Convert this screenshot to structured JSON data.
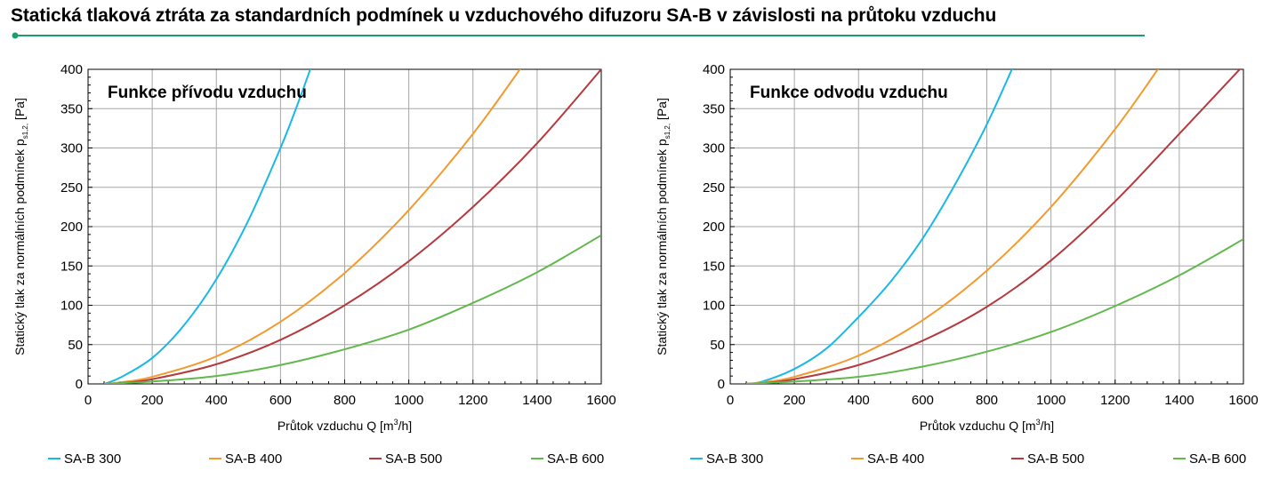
{
  "page": {
    "title": "Statická tlaková ztráta za standardních podmínek u vzduchového difuzoru SA-B v závislosti na průtoku vzduchu",
    "accent_color": "#1a9e6b"
  },
  "chart_data": [
    {
      "type": "line",
      "panel_label": "Funkce přívodu vzduchu",
      "xlabel_text": "Průtok vzduchu Q [m",
      "xlabel_sup": "3",
      "xlabel_end": "/h]",
      "ylabel_text": "Statický tlak za normálních podmínek p",
      "ylabel_sub": "s1,2,",
      "ylabel_end": " [Pa]",
      "xlim": [
        0,
        1600
      ],
      "ylim": [
        0,
        400
      ],
      "x_ticks": [
        0,
        200,
        400,
        600,
        800,
        1000,
        1200,
        1400,
        1600
      ],
      "y_ticks": [
        0,
        50,
        100,
        150,
        200,
        250,
        300,
        350,
        400
      ],
      "grid": true,
      "legend_position": "bottom",
      "series": [
        {
          "name": "SA-B 300",
          "color": "#19b8e6",
          "x": [
            50,
            100,
            200,
            300,
            400,
            500,
            600,
            650,
            700
          ],
          "y": [
            0,
            8,
            33,
            75,
            133,
            208,
            300,
            352,
            408
          ]
        },
        {
          "name": "SA-B 400",
          "color": "#f29a2e",
          "x": [
            50,
            100,
            200,
            400,
            600,
            800,
            1000,
            1200,
            1350
          ],
          "y": [
            0,
            2,
            9,
            35,
            79,
            141,
            221,
            318,
            402
          ]
        },
        {
          "name": "SA-B 500",
          "color": "#b5393d",
          "x": [
            50,
            100,
            200,
            400,
            600,
            800,
            1000,
            1200,
            1400,
            1600
          ],
          "y": [
            0,
            1,
            6,
            25,
            56,
            100,
            156,
            225,
            306,
            400
          ]
        },
        {
          "name": "SA-B 600",
          "color": "#62b84d",
          "x": [
            50,
            100,
            200,
            400,
            600,
            800,
            1000,
            1200,
            1400,
            1600
          ],
          "y": [
            0,
            1,
            3,
            10,
            24,
            44,
            69,
            103,
            142,
            189
          ]
        }
      ]
    },
    {
      "type": "line",
      "panel_label": "Funkce odvodu vzduchu",
      "xlabel_text": "Průtok vzduchu Q [m",
      "xlabel_sup": "3",
      "xlabel_end": "/h]",
      "ylabel_text": "Statický tlak za normálních podmínek p",
      "ylabel_sub": "s1,2,",
      "ylabel_end": " [Pa]",
      "xlim": [
        0,
        1600
      ],
      "ylim": [
        0,
        400
      ],
      "x_ticks": [
        0,
        200,
        400,
        600,
        800,
        1000,
        1200,
        1400,
        1600
      ],
      "y_ticks": [
        0,
        50,
        100,
        150,
        200,
        250,
        300,
        350,
        400
      ],
      "grid": true,
      "legend_position": "bottom",
      "series": [
        {
          "name": "SA-B 300",
          "color": "#19b8e6",
          "x": [
            50,
            100,
            200,
            300,
            400,
            500,
            600,
            700,
            800,
            900
          ],
          "y": [
            0,
            3,
            19,
            45,
            85,
            130,
            185,
            253,
            330,
            420
          ]
        },
        {
          "name": "SA-B 400",
          "color": "#f29a2e",
          "x": [
            50,
            100,
            200,
            400,
            600,
            800,
            1000,
            1200,
            1350
          ],
          "y": [
            0,
            2,
            9,
            36,
            81,
            144,
            225,
            324,
            410
          ]
        },
        {
          "name": "SA-B 500",
          "color": "#b5393d",
          "x": [
            50,
            100,
            200,
            400,
            600,
            800,
            1000,
            1200,
            1400,
            1600
          ],
          "y": [
            0,
            1,
            6,
            24,
            55,
            98,
            157,
            232,
            318,
            405
          ]
        },
        {
          "name": "SA-B 600",
          "color": "#62b84d",
          "x": [
            50,
            100,
            200,
            400,
            600,
            800,
            1000,
            1200,
            1400,
            1600
          ],
          "y": [
            0,
            1,
            3,
            9,
            22,
            41,
            66,
            99,
            138,
            184
          ]
        }
      ]
    }
  ]
}
